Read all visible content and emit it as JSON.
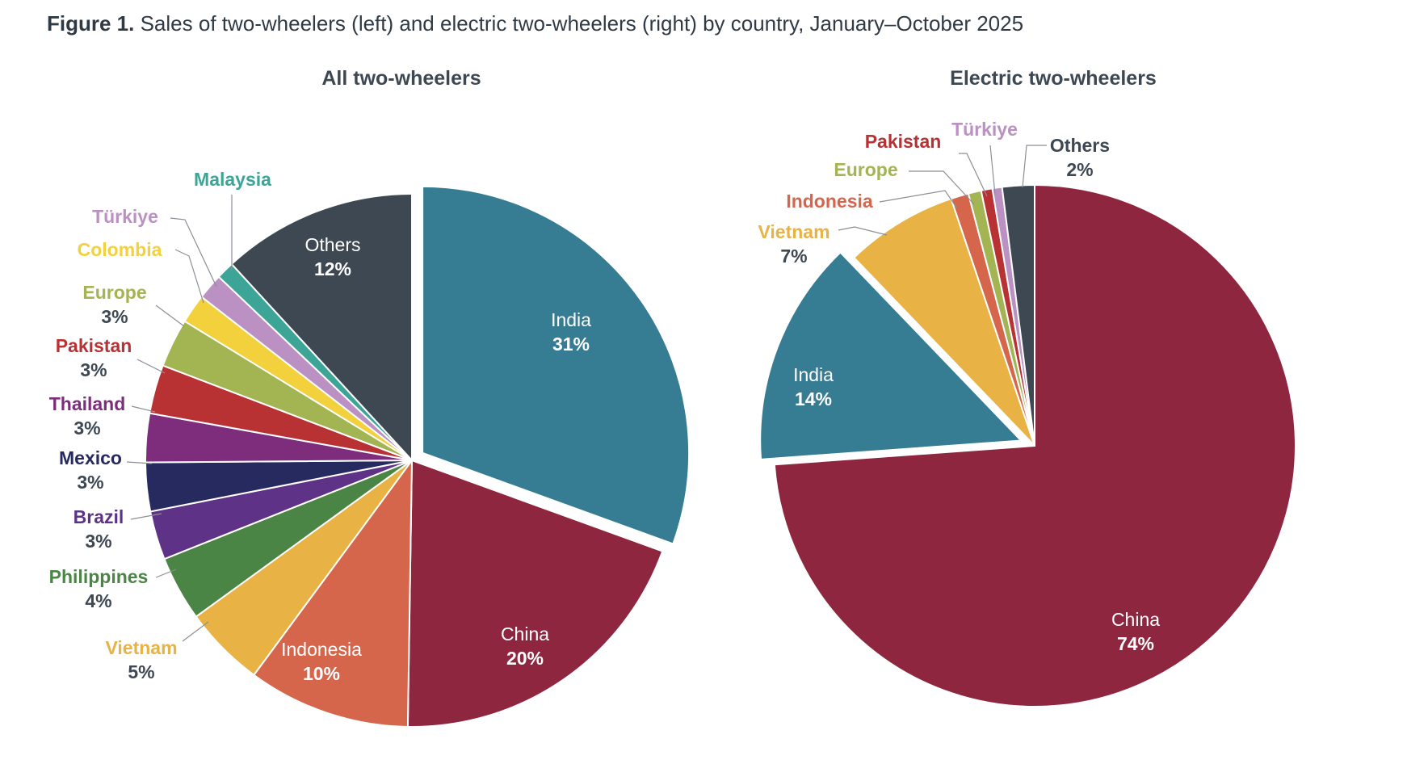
{
  "figure": {
    "label": "Figure 1.",
    "caption": "Sales of two-wheelers (left) and electric two-wheelers (right) by country, January–October 2025"
  },
  "colors": {
    "India": "#367c92",
    "China": "#8e263f",
    "Indonesia": "#d5654b",
    "Vietnam": "#e8b244",
    "Philippines": "#4a8545",
    "Brazil": "#5e3387",
    "Mexico": "#272a5f",
    "Thailand": "#7e2c7c",
    "Pakistan": "#b83234",
    "Europe": "#a3b452",
    "Colombia": "#f2d13c",
    "Türkiye": "#bb90c2",
    "Malaysia": "#3ca597",
    "Others": "#3d4853"
  },
  "chart_data": [
    {
      "type": "pie",
      "title": "All two-wheelers",
      "start": "12 o'clock, clockwise",
      "exploded": "India",
      "slices": [
        {
          "name": "India",
          "value": 31,
          "label": "31%"
        },
        {
          "name": "China",
          "value": 20,
          "label": "20%"
        },
        {
          "name": "Indonesia",
          "value": 10,
          "label": "10%"
        },
        {
          "name": "Vietnam",
          "value": 5,
          "label": "5%"
        },
        {
          "name": "Philippines",
          "value": 4,
          "label": "4%"
        },
        {
          "name": "Brazil",
          "value": 3,
          "label": "3%"
        },
        {
          "name": "Mexico",
          "value": 3,
          "label": "3%"
        },
        {
          "name": "Thailand",
          "value": 3,
          "label": "3%"
        },
        {
          "name": "Pakistan",
          "value": 3,
          "label": "3%"
        },
        {
          "name": "Europe",
          "value": 3,
          "label": "3%"
        },
        {
          "name": "Colombia",
          "value": 1.8,
          "label": ""
        },
        {
          "name": "Türkiye",
          "value": 1.6,
          "label": ""
        },
        {
          "name": "Malaysia",
          "value": 1.1,
          "label": ""
        },
        {
          "name": "Others",
          "value": 12,
          "label": "12%"
        }
      ]
    },
    {
      "type": "pie",
      "title": "Electric two-wheelers",
      "start": "12 o'clock, clockwise",
      "exploded": "India",
      "slices": [
        {
          "name": "China",
          "value": 74,
          "label": "74%"
        },
        {
          "name": "India",
          "value": 14,
          "label": "14%"
        },
        {
          "name": "Vietnam",
          "value": 7,
          "label": "7%"
        },
        {
          "name": "Indonesia",
          "value": 1.1,
          "label": ""
        },
        {
          "name": "Europe",
          "value": 0.8,
          "label": ""
        },
        {
          "name": "Pakistan",
          "value": 0.7,
          "label": ""
        },
        {
          "name": "Türkiye",
          "value": 0.6,
          "label": ""
        },
        {
          "name": "Others",
          "value": 2,
          "label": "2%"
        }
      ]
    }
  ]
}
